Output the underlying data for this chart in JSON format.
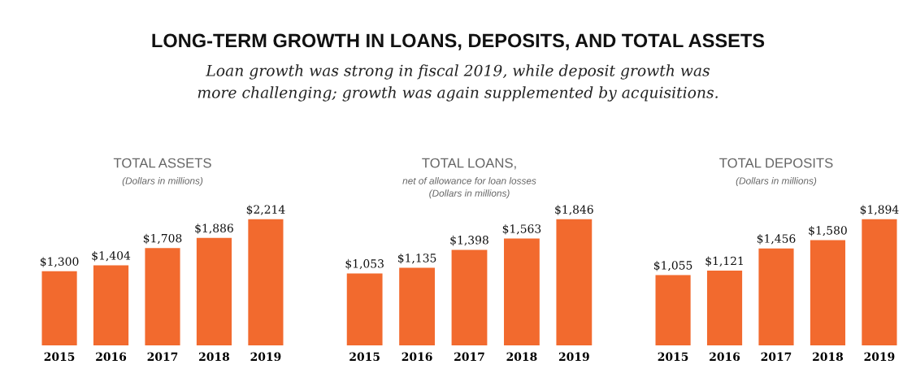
{
  "chart_data": [
    {
      "type": "other",
      "title": "LONG-TERM GROWTH IN LOANS, DEPOSITS, AND TOTAL ASSETS",
      "subtitle": "Loan growth was strong in fiscal 2019, while deposit growth was\nmore challenging; growth was again supplemented by acquisitions."
    },
    {
      "type": "bar",
      "title": "TOTAL ASSETS",
      "subtitle": "(Dollars in millions)",
      "categories": [
        "2015",
        "2016",
        "2017",
        "2018",
        "2019"
      ],
      "values": [
        1300,
        1404,
        1708,
        1886,
        2214
      ],
      "value_labels": [
        "$1,300",
        "$1,404",
        "$1,708",
        "$1,886",
        "$2,214"
      ],
      "color": "#f26a2e",
      "grid": false,
      "legend": false
    },
    {
      "type": "bar",
      "title": "TOTAL LOANS,",
      "subtitle": "net of allowance for loan losses\n(Dollars in millions)",
      "categories": [
        "2015",
        "2016",
        "2017",
        "2018",
        "2019"
      ],
      "values": [
        1053,
        1135,
        1398,
        1563,
        1846
      ],
      "value_labels": [
        "$1,053",
        "$1,135",
        "$1,398",
        "$1,563",
        "$1,846"
      ],
      "color": "#f26a2e",
      "grid": false,
      "legend": false
    },
    {
      "type": "bar",
      "title": "TOTAL DEPOSITS",
      "subtitle": "(Dollars in millions)",
      "categories": [
        "2015",
        "2016",
        "2017",
        "2018",
        "2019"
      ],
      "values": [
        1055,
        1121,
        1456,
        1580,
        1894
      ],
      "value_labels": [
        "$1,055",
        "$1,121",
        "$1,456",
        "$1,580",
        "$1,894"
      ],
      "color": "#f26a2e",
      "grid": false,
      "legend": false
    }
  ]
}
